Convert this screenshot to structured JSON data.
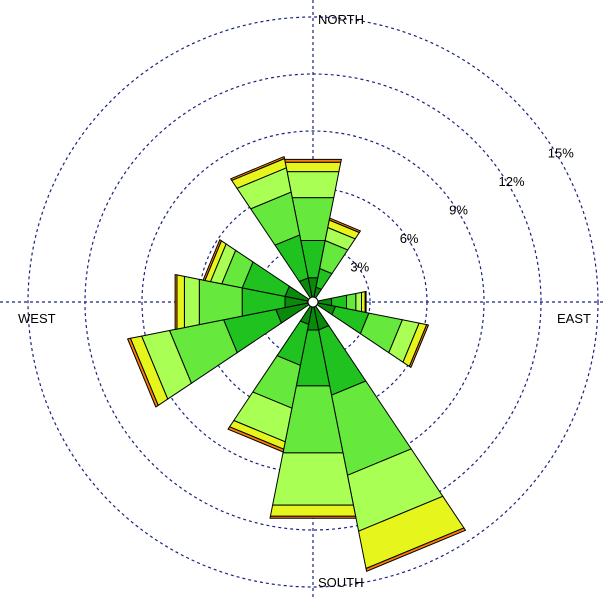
{
  "chart_data": {
    "type": "wind-rose",
    "directions": [
      "N",
      "NNE",
      "NE",
      "ENE",
      "E",
      "ESE",
      "SE",
      "SSE",
      "S",
      "SSW",
      "SW",
      "WSW",
      "W",
      "WNW",
      "NW",
      "NNW"
    ],
    "direction_labels": {
      "north": "NORTH",
      "east": "EAST",
      "south": "SOUTH",
      "west": "WEST"
    },
    "rings": [
      3,
      6,
      9,
      12,
      15
    ],
    "ring_labels": [
      "3%",
      "6%",
      "9%",
      "12%",
      "15%"
    ],
    "ring_label_angle_deg": 30,
    "speed_class_colors": [
      "#0a8a0a",
      "#1fc21f",
      "#66e83c",
      "#aaff55",
      "#e6f51c",
      "#ff7f00"
    ],
    "bins": [
      {
        "dir": "N",
        "segments": [
          1.3,
          2.0,
          2.3,
          1.4,
          0.5,
          0.15
        ]
      },
      {
        "dir": "NNE",
        "segments": [
          0.8,
          1.0,
          1.5,
          0.7,
          0.4,
          0.1
        ]
      },
      {
        "dir": "NE",
        "segments": [
          0.0,
          0.0,
          0.0,
          0.0,
          0.0,
          0.0
        ]
      },
      {
        "dir": "ENE",
        "segments": [
          0.0,
          0.0,
          0.0,
          0.0,
          0.0,
          0.0
        ]
      },
      {
        "dir": "E",
        "segments": [
          1.0,
          0.8,
          0.5,
          0.3,
          0.2,
          0.05
        ]
      },
      {
        "dir": "ESE",
        "segments": [
          1.2,
          1.8,
          1.8,
          0.9,
          0.4,
          0.1
        ]
      },
      {
        "dir": "SE",
        "segments": [
          0.0,
          0.0,
          0.0,
          0.0,
          0.0,
          0.0
        ]
      },
      {
        "dir": "SSE",
        "segments": [
          1.5,
          3.5,
          4.3,
          3.0,
          2.0,
          0.15
        ]
      },
      {
        "dir": "S",
        "segments": [
          1.5,
          3.0,
          3.6,
          2.8,
          0.6,
          0.1
        ]
      },
      {
        "dir": "SSW",
        "segments": [
          1.2,
          2.2,
          2.3,
          1.8,
          0.4,
          0.15
        ]
      },
      {
        "dir": "SW",
        "segments": [
          0.0,
          0.0,
          0.0,
          0.0,
          0.0,
          0.0
        ]
      },
      {
        "dir": "WSW",
        "segments": [
          2.0,
          2.8,
          2.9,
          1.5,
          0.6,
          0.15
        ]
      },
      {
        "dir": "W",
        "segments": [
          1.5,
          2.3,
          2.3,
          0.8,
          0.4,
          0.1
        ]
      },
      {
        "dir": "WNW",
        "segments": [
          1.5,
          2.3,
          1.1,
          0.6,
          0.3,
          0.1
        ]
      },
      {
        "dir": "NW",
        "segments": [
          0.0,
          0.0,
          0.0,
          0.0,
          0.0,
          0.0
        ]
      },
      {
        "dir": "NNW",
        "segments": [
          1.3,
          2.3,
          2.3,
          1.3,
          0.5,
          0.1
        ]
      }
    ],
    "grid": true,
    "legend": "none"
  }
}
